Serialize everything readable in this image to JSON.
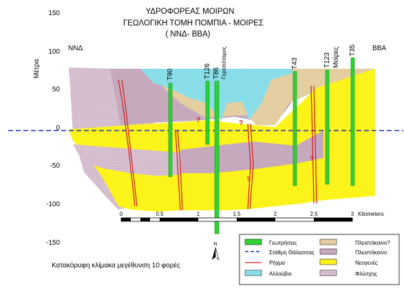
{
  "title": {
    "line1": "ΥΔΡΟΦΟΡΕΑΣ ΜΟΙΡΩΝ",
    "line2": "ΓΕΩΛΟΓΙΚΗ ΤΟΜΗ ΠΟΜΠΙΑ - ΜΟΙΡΕΣ",
    "line3": "( ΝΝΔ- ΒΒΑ)"
  },
  "axis": {
    "ylabel": "Μέτρα",
    "ticks": [
      "150",
      "100",
      "50",
      "0",
      "-50",
      "-100",
      "-150"
    ],
    "left_direction": "ΝΝΔ",
    "right_direction": "ΒΒΑ"
  },
  "places": {
    "stream": "Γεροπόταμος",
    "town": "Μοίρες"
  },
  "boreholes": [
    "Τ90",
    "Τ126",
    "Τ86",
    "Τ43",
    "Τ123",
    "Τ35"
  ],
  "unknown_marks": [
    "?",
    "?",
    "?",
    "?"
  ],
  "scalebar": {
    "ticks": [
      "0",
      "0.5",
      "1",
      "1.5",
      "2",
      "2.5",
      "3"
    ],
    "unit": "Kilometers"
  },
  "north_label": "N",
  "note": "Κατακόρυφη κλίμακα μεγέθυνση 10 φορές",
  "legend": [
    {
      "key": "boreholes",
      "label": "Γεωτρήσεις"
    },
    {
      "key": "sea_level",
      "label": "Στάθμη Θάλασσας"
    },
    {
      "key": "fault",
      "label": "Ρήγμα"
    },
    {
      "key": "alluvium",
      "label": "Αλλούβιο"
    },
    {
      "key": "pleist_q",
      "label": "Πλειστόκαινο?"
    },
    {
      "key": "pleist",
      "label": "Πλειστόκαινο"
    },
    {
      "key": "neogene",
      "label": "Νεογενές"
    },
    {
      "key": "flysch",
      "label": "Φλύσχης"
    }
  ],
  "colors": {
    "alluvium": "#8fe2ec",
    "pleist_q": "#e7d2a2",
    "pleist": "#cfb1c2",
    "neogene": "#fbf31a",
    "flysch": "#d7c1d3",
    "borehole": "#2ed235",
    "fault": "#d11a1a",
    "sea_level": "#1a2fb8"
  }
}
